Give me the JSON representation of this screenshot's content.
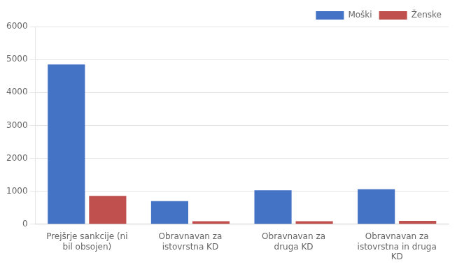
{
  "chart_data": {
    "type": "bar",
    "categories": [
      "Prejšrje sankcije (ni\nbil obsojen)",
      "Obravnavan za\nistovrstna KD",
      "Obravnavan za\ndruga KD",
      "Obravnavan za\nistovrstna in druga\nKD"
    ],
    "series": [
      {
        "name": "Moški",
        "color": "#4472C4",
        "values": [
          4850,
          700,
          1030,
          1060
        ]
      },
      {
        "name": "Ženske",
        "color": "#C0504D",
        "values": [
          860,
          90,
          90,
          100
        ]
      }
    ],
    "ylim": [
      0,
      6000
    ],
    "yticks": [
      0,
      1000,
      2000,
      3000,
      4000,
      5000,
      6000
    ],
    "grid": true,
    "legend": "upper right"
  }
}
